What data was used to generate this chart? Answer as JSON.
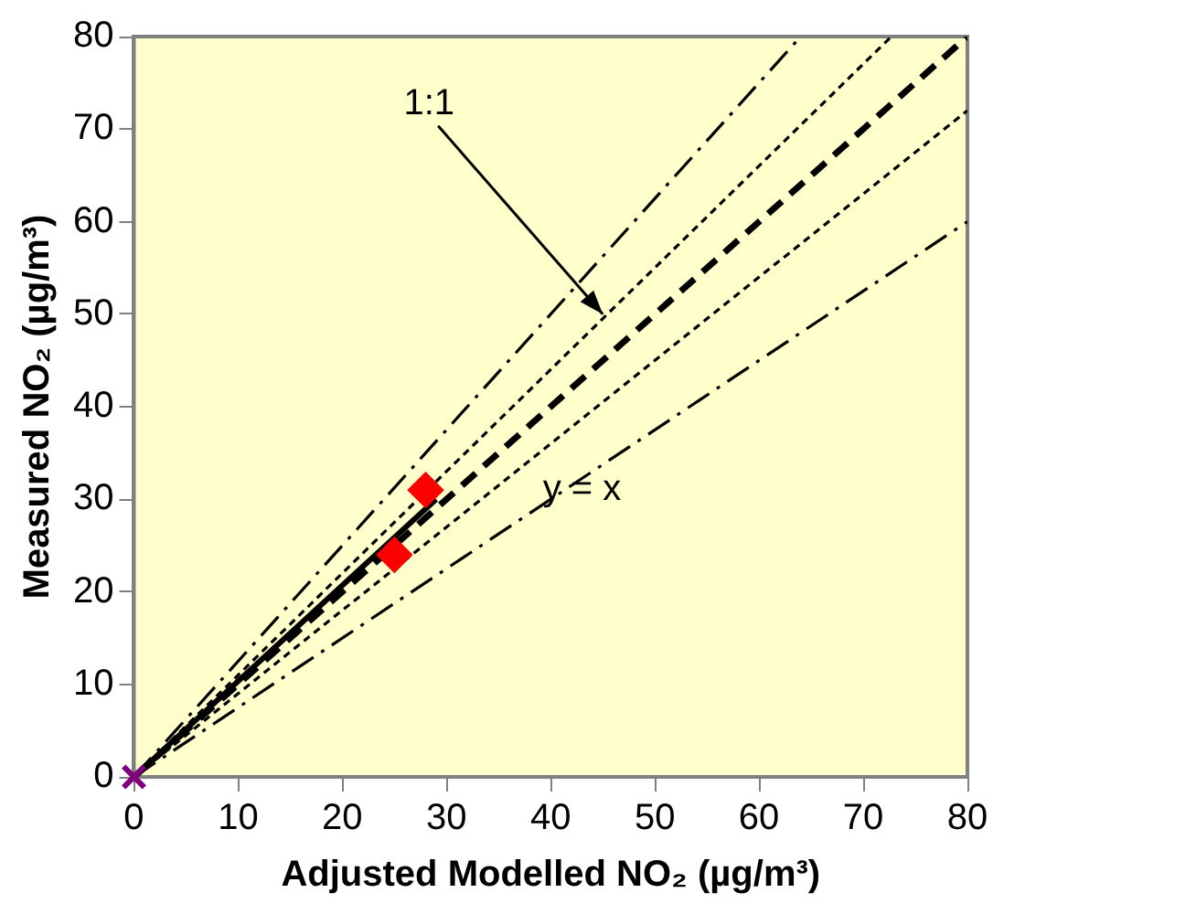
{
  "chart_data": {
    "type": "scatter",
    "xlabel": "Adjusted Modelled NO₂ (µg/m³)",
    "ylabel": "Measured NO₂ (µg/m³)",
    "xlim": [
      0,
      80
    ],
    "ylim": [
      0,
      80
    ],
    "xticks": [
      0,
      10,
      20,
      30,
      40,
      50,
      60,
      70,
      80
    ],
    "yticks": [
      0,
      10,
      20,
      30,
      40,
      50,
      60,
      70,
      80
    ],
    "grid": false,
    "legend": false,
    "series": [
      {
        "type": "line",
        "x": [
          0,
          64
        ],
        "values": [
          0,
          80
        ],
        "color": "#000000",
        "line_style": "dashdot",
        "marker": "none"
      },
      {
        "type": "line",
        "x": [
          0,
          72.7
        ],
        "values": [
          0,
          80
        ],
        "color": "#000000",
        "line_style": "dotted",
        "marker": "none"
      },
      {
        "type": "line",
        "x": [
          0,
          80
        ],
        "values": [
          0,
          80
        ],
        "color": "#000000",
        "line_style": "dashed",
        "marker": "none"
      },
      {
        "type": "line",
        "x": [
          0,
          80
        ],
        "values": [
          0,
          72
        ],
        "color": "#000000",
        "line_style": "dotted",
        "marker": "none"
      },
      {
        "type": "line",
        "x": [
          0,
          80
        ],
        "values": [
          0,
          60
        ],
        "color": "#000000",
        "line_style": "dashdot",
        "marker": "none"
      },
      {
        "type": "line",
        "x": [
          0,
          29
        ],
        "values": [
          0,
          30
        ],
        "color": "#000000",
        "line_style": "solid",
        "marker": "none"
      },
      {
        "type": "scatter",
        "x": [
          25,
          28
        ],
        "values": [
          24,
          31
        ],
        "color": "#ff0000",
        "marker": "diamond"
      },
      {
        "type": "scatter",
        "x": [
          0
        ],
        "values": [
          0
        ],
        "color": "#800080",
        "marker": "cross"
      }
    ],
    "annotations": [
      {
        "text": "1:1",
        "x": 45,
        "y": 50
      },
      {
        "text": "y = x",
        "x": 43,
        "y": 31
      }
    ]
  }
}
